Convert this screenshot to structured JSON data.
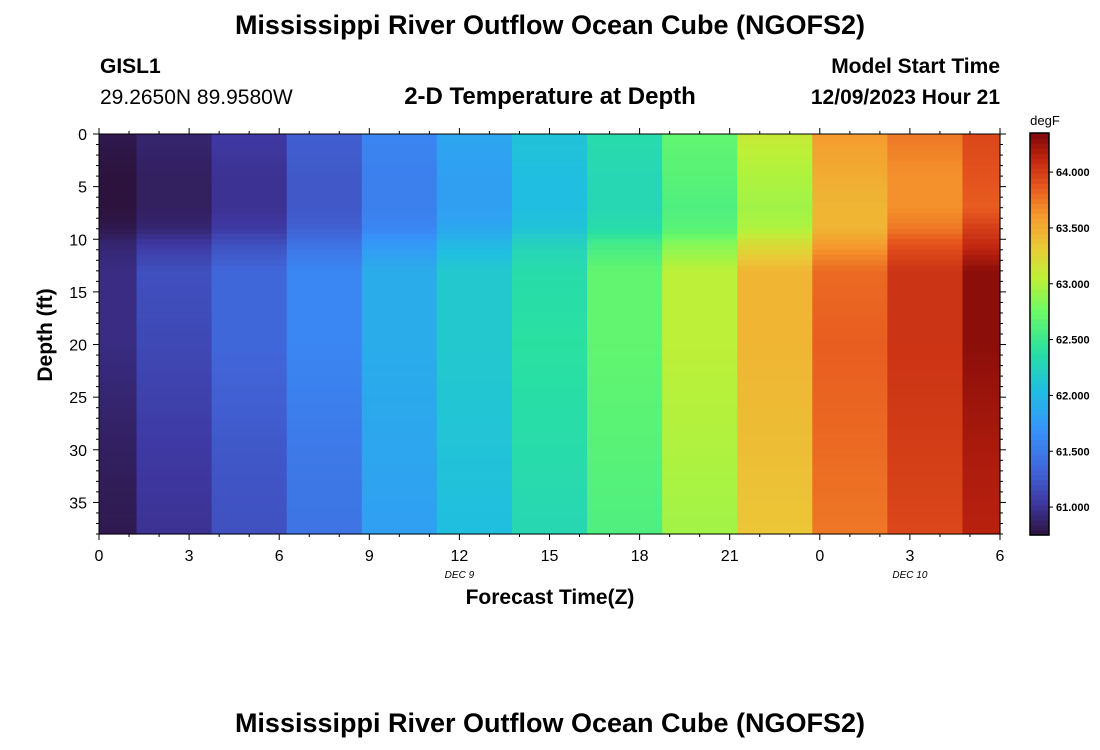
{
  "header": {
    "title": "Mississippi River Outflow Ocean Cube (NGOFS2)",
    "station": "GISL1",
    "coords": "29.2650N  89.9580W",
    "subtitle": "2-D Temperature at Depth",
    "model_start_label": "Model Start Time",
    "model_start_value": "12/09/2023 Hour 21"
  },
  "footer": {
    "title": "Mississippi River Outflow Ocean Cube (NGOFS2)"
  },
  "chart_data": {
    "type": "heatmap",
    "xlabel": "Forecast Time(Z)",
    "ylabel": "Depth (ft)",
    "x_ticks": [
      "0",
      "3",
      "6",
      "9",
      "12",
      "15",
      "18",
      "21",
      "0",
      "3",
      "6"
    ],
    "x_range_hours": [
      0,
      30
    ],
    "date_labels": [
      {
        "label": "DEC 9",
        "hour": 12
      },
      {
        "label": "DEC 10",
        "hour": 27
      }
    ],
    "y_ticks": [
      0,
      5,
      10,
      15,
      20,
      25,
      30,
      35
    ],
    "ylim": [
      0,
      38
    ],
    "y_reversed": true,
    "colorbar": {
      "unit": "degF",
      "ticks": [
        "61.000",
        "61.500",
        "62.000",
        "62.500",
        "63.000",
        "63.500",
        "64.000"
      ],
      "range": [
        60.75,
        64.35
      ]
    },
    "time_columns_hours": [
      0,
      2.5,
      5,
      7.5,
      10,
      12.5,
      15,
      17.5,
      20,
      22.5,
      25,
      27.5,
      30
    ],
    "depth_rows_ft": [
      0,
      4,
      7,
      9,
      10.5,
      13,
      20,
      30,
      38
    ],
    "temps_degF": [
      [
        60.8,
        60.9,
        61.05,
        61.3,
        61.6,
        61.85,
        62.1,
        62.35,
        62.7,
        63.1,
        63.6,
        63.75,
        63.95
      ],
      [
        60.75,
        60.85,
        61.0,
        61.25,
        61.55,
        61.8,
        62.05,
        62.3,
        62.65,
        63.0,
        63.5,
        63.65,
        63.9
      ],
      [
        60.75,
        60.85,
        61.0,
        61.25,
        61.55,
        61.8,
        62.05,
        62.3,
        62.6,
        62.95,
        63.45,
        63.65,
        63.85
      ],
      [
        60.8,
        60.9,
        61.05,
        61.3,
        61.6,
        61.85,
        62.1,
        62.35,
        62.65,
        63.0,
        63.45,
        63.75,
        64.0
      ],
      [
        60.9,
        61.05,
        61.2,
        61.45,
        61.75,
        62.0,
        62.25,
        62.55,
        62.85,
        63.2,
        63.6,
        63.9,
        64.1
      ],
      [
        60.95,
        61.2,
        61.35,
        61.6,
        61.9,
        62.15,
        62.35,
        62.7,
        63.05,
        63.45,
        63.8,
        64.05,
        64.3
      ],
      [
        60.95,
        61.15,
        61.35,
        61.6,
        61.9,
        62.15,
        62.4,
        62.7,
        63.05,
        63.45,
        63.85,
        64.05,
        64.3
      ],
      [
        60.85,
        61.05,
        61.25,
        61.5,
        61.85,
        62.1,
        62.35,
        62.65,
        63.0,
        63.4,
        63.8,
        64.0,
        64.2
      ],
      [
        60.8,
        61.0,
        61.2,
        61.45,
        61.8,
        62.05,
        62.3,
        62.6,
        62.95,
        63.35,
        63.75,
        63.95,
        64.15
      ]
    ]
  }
}
